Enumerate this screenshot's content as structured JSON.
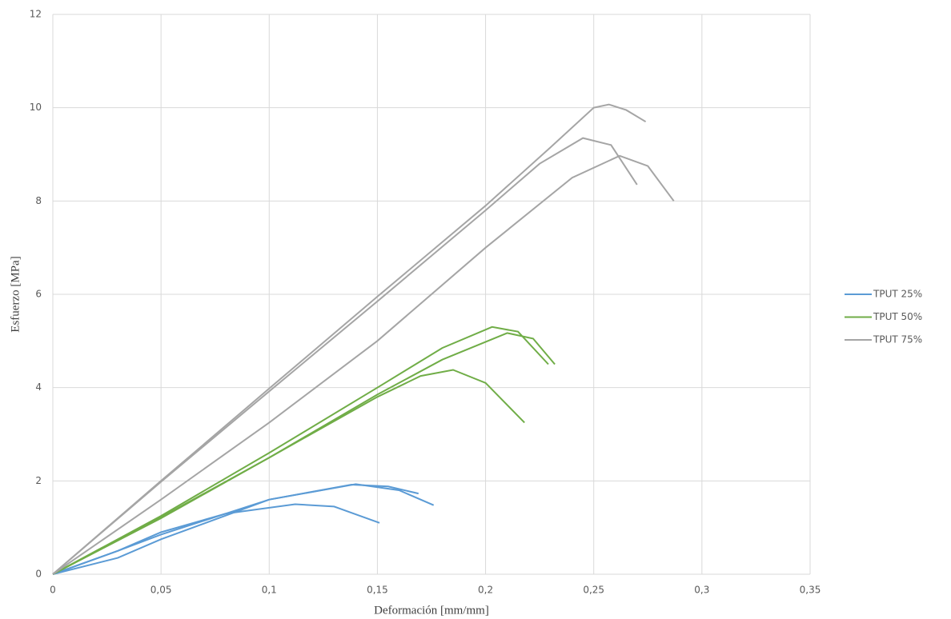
{
  "chart_data": {
    "type": "line",
    "x_label": "Deformación [mm/mm]",
    "y_label": "Esfuerzo [MPa]",
    "xlim": [
      0,
      0.35
    ],
    "ylim": [
      0,
      12
    ],
    "xticks": [
      0,
      {
        "value": 0.05,
        "label": "0,05"
      },
      {
        "value": 0.1,
        "label": "0,1"
      },
      {
        "value": 0.15,
        "label": "0,15"
      },
      {
        "value": 0.2,
        "label": "0,2"
      },
      {
        "value": 0.25,
        "label": "0,25"
      },
      {
        "value": 0.3,
        "label": "0,3"
      },
      {
        "value": 0.35,
        "label": "0,35"
      }
    ],
    "yticks": [
      0,
      2,
      4,
      6,
      8,
      10,
      12
    ],
    "grid": true,
    "legend": "right",
    "series": [
      {
        "name": "TPUT 25%",
        "color": "#5b9bd5",
        "curves": [
          {
            "x": [
              0,
              0.03,
              0.05,
              0.1,
              0.138,
              0.155,
              0.169
            ],
            "values": [
              0,
              0.5,
              0.85,
              1.6,
              1.92,
              1.88,
              1.73
            ]
          },
          {
            "x": [
              0,
              0.03,
              0.05,
              0.1,
              0.14,
              0.16,
              0.176
            ],
            "values": [
              0,
              0.35,
              0.75,
              1.6,
              1.93,
              1.8,
              1.48
            ]
          },
          {
            "x": [
              0,
              0.03,
              0.05,
              0.08,
              0.112,
              0.13,
              0.151
            ],
            "values": [
              0,
              0.5,
              0.9,
              1.3,
              1.5,
              1.45,
              1.1
            ]
          }
        ]
      },
      {
        "name": "TPUT 50%",
        "color": "#70ad47",
        "curves": [
          {
            "x": [
              0,
              0.05,
              0.1,
              0.15,
              0.18,
              0.203,
              0.215,
              0.229
            ],
            "values": [
              0,
              1.25,
              2.6,
              4.0,
              4.85,
              5.3,
              5.2,
              4.5
            ]
          },
          {
            "x": [
              0,
              0.05,
              0.1,
              0.15,
              0.18,
              0.21,
              0.222,
              0.232
            ],
            "values": [
              0,
              1.22,
              2.5,
              3.85,
              4.6,
              5.17,
              5.05,
              4.5
            ]
          },
          {
            "x": [
              0,
              0.05,
              0.1,
              0.15,
              0.17,
              0.185,
              0.2,
              0.218
            ],
            "values": [
              0,
              1.2,
              2.5,
              3.8,
              4.25,
              4.38,
              4.1,
              3.25
            ]
          }
        ]
      },
      {
        "name": "TPUT 75%",
        "color": "#a5a5a5",
        "curves": [
          {
            "x": [
              0,
              0.05,
              0.1,
              0.15,
              0.2,
              0.23,
              0.25,
              0.257,
              0.265,
              0.274
            ],
            "values": [
              0,
              2.0,
              3.98,
              5.95,
              7.9,
              9.15,
              10.0,
              10.07,
              9.95,
              9.7
            ]
          },
          {
            "x": [
              0,
              0.05,
              0.1,
              0.15,
              0.2,
              0.225,
              0.245,
              0.258,
              0.27
            ],
            "values": [
              0,
              1.98,
              3.92,
              5.85,
              7.8,
              8.8,
              9.35,
              9.2,
              8.35
            ]
          },
          {
            "x": [
              0,
              0.05,
              0.1,
              0.15,
              0.2,
              0.24,
              0.262,
              0.275,
              0.287
            ],
            "values": [
              0,
              1.6,
              3.25,
              5.0,
              7.0,
              8.5,
              8.97,
              8.75,
              8.0
            ]
          }
        ]
      }
    ]
  }
}
